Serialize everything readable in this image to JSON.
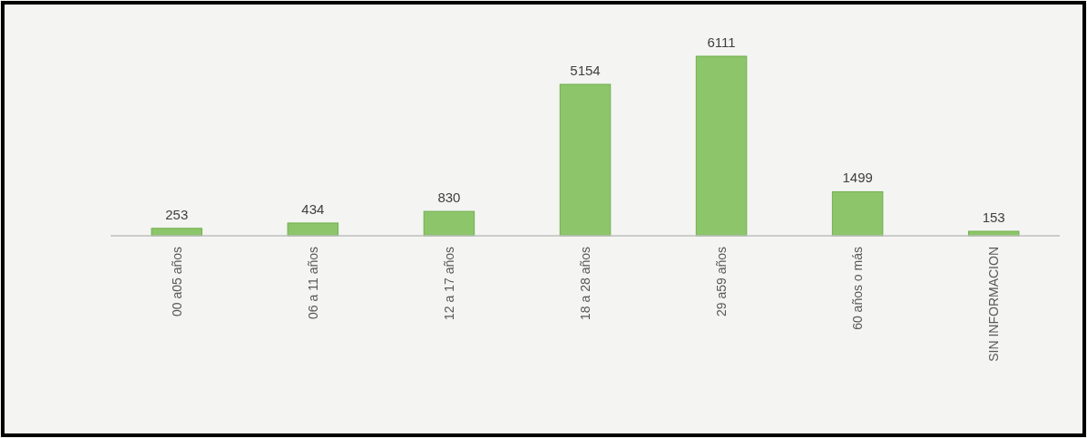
{
  "chart_data": {
    "type": "bar",
    "categories": [
      "00 a05 años",
      "06 a 11 años",
      "12 a 17 años",
      "18 a 28 años",
      "29 a59 años",
      "60 años o más",
      "SIN INFORMACION"
    ],
    "values": [
      253,
      434,
      830,
      5154,
      6111,
      1499,
      153
    ],
    "color": "#8cc56a",
    "data_labels": true
  }
}
